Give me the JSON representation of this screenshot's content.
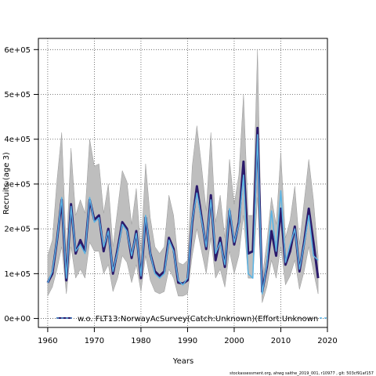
{
  "chart_data": {
    "type": "line",
    "title": "",
    "xlabel": "Years",
    "ylabel": "Recruits (age 3)",
    "xlim": [
      1958,
      2020
    ],
    "ylim": [
      -20000,
      625000
    ],
    "x_ticks": [
      1960,
      1970,
      1980,
      1990,
      2000,
      2010,
      2020
    ],
    "x_tick_labels": [
      "1960",
      "1970",
      "1980",
      "1990",
      "2000",
      "2010",
      "2020"
    ],
    "y_ticks": [
      0,
      100000,
      200000,
      300000,
      400000,
      500000,
      600000
    ],
    "y_tick_labels": [
      "0e+00",
      "1e+05",
      "2e+05",
      "3e+05",
      "4e+05",
      "5e+05",
      "6e+05"
    ],
    "grid": true,
    "legend_position": "bottom",
    "x": [
      1960,
      1961,
      1962,
      1963,
      1964,
      1965,
      1966,
      1967,
      1968,
      1969,
      1970,
      1971,
      1972,
      1973,
      1974,
      1975,
      1976,
      1977,
      1978,
      1979,
      1980,
      1981,
      1982,
      1983,
      1984,
      1985,
      1986,
      1987,
      1988,
      1989,
      1990,
      1991,
      1992,
      1993,
      1994,
      1995,
      1996,
      1997,
      1998,
      1999,
      2000,
      2001,
      2002,
      2003,
      2004,
      2005,
      2006,
      2007,
      2008,
      2009,
      2010,
      2011,
      2012,
      2013,
      2014,
      2015,
      2016,
      2017,
      2018
    ],
    "series": [
      {
        "name": "",
        "role": "base run",
        "color": "#2b1a6b",
        "values": [
          80000,
          100000,
          175000,
          265000,
          85000,
          255000,
          145000,
          175000,
          150000,
          265000,
          220000,
          230000,
          150000,
          200000,
          100000,
          155000,
          215000,
          200000,
          135000,
          195000,
          90000,
          225000,
          145000,
          105000,
          95000,
          105000,
          180000,
          155000,
          80000,
          78000,
          85000,
          215000,
          295000,
          225000,
          155000,
          275000,
          130000,
          180000,
          115000,
          240000,
          165000,
          215000,
          350000,
          145000,
          150000,
          425000,
          60000,
          115000,
          195000,
          140000,
          245000,
          120000,
          150000,
          205000,
          105000,
          170000,
          245000,
          170000,
          90000
        ]
      },
      {
        "name": "w.o. FLT13:NorwayAcSurvey(Catch:Unknown)(Effort:Unknown",
        "color": "#5ab4e5",
        "values": [
          80000,
          105000,
          175000,
          270000,
          90000,
          250000,
          150000,
          165000,
          145000,
          270000,
          215000,
          225000,
          160000,
          195000,
          105000,
          150000,
          210000,
          195000,
          140000,
          190000,
          95000,
          230000,
          145000,
          100000,
          90000,
          100000,
          175000,
          150000,
          85000,
          75000,
          90000,
          220000,
          280000,
          220000,
          160000,
          265000,
          145000,
          170000,
          120000,
          245000,
          170000,
          210000,
          320000,
          100000,
          90000,
          410000,
          55000,
          120000,
          240000,
          150000,
          285000,
          125000,
          165000,
          200000,
          110000,
          165000,
          230000,
          140000,
          130000
        ]
      }
    ],
    "confidence_band": {
      "color": "#bebebe",
      "lower": [
        50000,
        70000,
        110000,
        160000,
        55000,
        160000,
        90000,
        110000,
        90000,
        170000,
        150000,
        150000,
        100000,
        120000,
        60000,
        90000,
        140000,
        125000,
        80000,
        120000,
        60000,
        140000,
        85000,
        60000,
        55000,
        60000,
        110000,
        90000,
        50000,
        50000,
        55000,
        140000,
        200000,
        150000,
        100000,
        180000,
        90000,
        110000,
        70000,
        150000,
        100000,
        140000,
        230000,
        90000,
        90000,
        270000,
        35000,
        70000,
        130000,
        90000,
        160000,
        75000,
        95000,
        130000,
        65000,
        105000,
        160000,
        105000,
        55000
      ],
      "upper": [
        140000,
        175000,
        310000,
        415000,
        150000,
        380000,
        230000,
        265000,
        235000,
        400000,
        340000,
        345000,
        235000,
        300000,
        160000,
        245000,
        330000,
        305000,
        210000,
        290000,
        150000,
        345000,
        225000,
        160000,
        145000,
        160000,
        275000,
        230000,
        125000,
        120000,
        130000,
        340000,
        430000,
        340000,
        240000,
        415000,
        215000,
        275000,
        180000,
        355000,
        255000,
        320000,
        500000,
        230000,
        230000,
        600000,
        90000,
        170000,
        270000,
        210000,
        370000,
        180000,
        220000,
        295000,
        165000,
        260000,
        355000,
        265000,
        140000
      ]
    },
    "footer": "stockassessment.org, ahwg saithe_2019_001, r10977 , git: 503cf91af157"
  }
}
